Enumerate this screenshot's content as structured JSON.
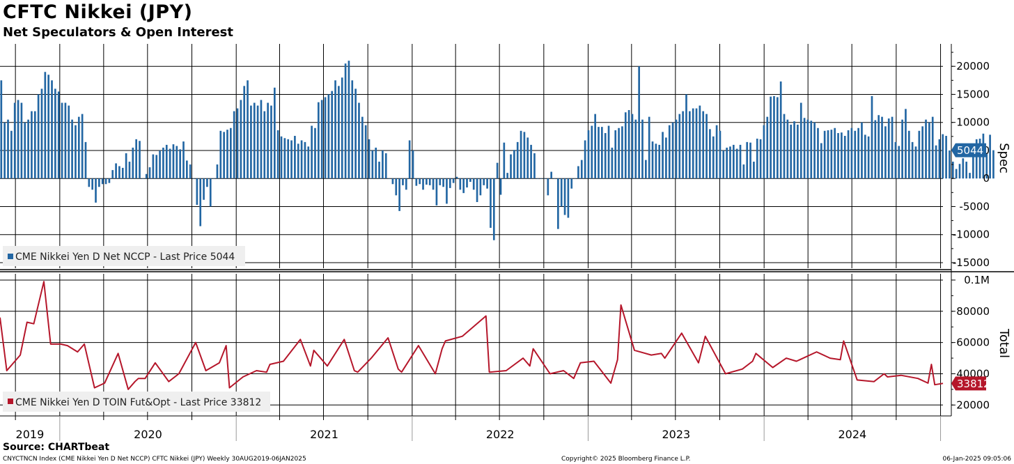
{
  "header": {
    "title": "CFTC Nikkei (JPY)",
    "subtitle": "Net Speculators & Open Interest"
  },
  "footer": {
    "source": "Source: CHARTbeat",
    "index_text": "CNYCTNCN Index (CME Nikkei Yen D Net NCCP) CFTC Nikkei (JPY)  Weekly 30AUG2019-06JAN2025",
    "copyright": "Copyright© 2025 Bloomberg Finance L.P.",
    "timestamp": "06-Jan-2025 09:05:06"
  },
  "colors": {
    "spec": "#2266a3",
    "total": "#b5162a",
    "grid": "#000000"
  },
  "chart_data": [
    {
      "type": "bar",
      "axis_title": "Spec",
      "legend_label": "CME Nikkei Yen D Net NCCP - Last Price 5044",
      "last_value": 5044,
      "last_value_label": "5044",
      "ylim": [
        -16000,
        24000
      ],
      "yticks": [
        20000,
        15000,
        10000,
        5000,
        0,
        -5000,
        -10000,
        -15000
      ],
      "ytick_labels": [
        "20000",
        "15000",
        "10000",
        "5000",
        "0",
        "-5000",
        "-10000",
        "-15000"
      ],
      "x_start": "2019-08-30",
      "x_end": "2025-01-06",
      "grid": true,
      "legend_position": "bottom-left",
      "weekly_values": [
        17500,
        10000,
        10500,
        8500,
        13500,
        14000,
        13500,
        10000,
        10500,
        12000,
        12000,
        15000,
        16000,
        19000,
        18500,
        17500,
        16000,
        15500,
        13500,
        13500,
        13000,
        10500,
        9500,
        11000,
        11500,
        6500,
        -1500,
        -2000,
        -4300,
        -1500,
        -1000,
        -1000,
        -800,
        1500,
        2700,
        2200,
        1900,
        4500,
        3000,
        5500,
        7000,
        6700,
        0,
        800,
        2000,
        4300,
        4200,
        5000,
        5500,
        6000,
        5300,
        6100,
        5800,
        5200,
        6600,
        3200,
        2500,
        0,
        -4700,
        -8500,
        -3800,
        -1500,
        -5000,
        0,
        2500,
        8500,
        8300,
        8700,
        9000,
        12000,
        12500,
        14000,
        16500,
        17500,
        13000,
        13500,
        13000,
        14000,
        12000,
        13500,
        13000,
        16200,
        8600,
        7500,
        7200,
        7000,
        6800,
        7600,
        6200,
        6800,
        6500,
        5700,
        9400,
        9000,
        13600,
        14000,
        14500,
        15000,
        15600,
        17500,
        16500,
        18000,
        20500,
        21000,
        17500,
        16000,
        13500,
        11000,
        9500,
        7000,
        5000,
        5500,
        3000,
        5000,
        4500,
        0,
        -1000,
        -3000,
        -5800,
        -1200,
        -2000,
        6800,
        5000,
        -1300,
        -1000,
        -2000,
        -1100,
        -1200,
        -2000,
        -4800,
        -1200,
        -1500,
        -4500,
        -1700,
        -800,
        300,
        -2000,
        -2600,
        -1600,
        -600,
        -2000,
        -4200,
        -3000,
        -1200,
        -1800,
        -8800,
        -11000,
        2800,
        -2900,
        6400,
        1000,
        4300,
        5100,
        6500,
        8500,
        8300,
        7300,
        6000,
        4500,
        0,
        0,
        0,
        -3000,
        1200,
        0,
        -9000,
        -5000,
        -6500,
        -7000,
        -1800,
        0,
        2200,
        3300,
        6800,
        8600,
        9400,
        11500,
        9200,
        9200,
        8100,
        9400,
        5500,
        8600,
        9000,
        9300,
        11800,
        12200,
        11500,
        10500,
        20000,
        10500,
        3300,
        11000,
        6600,
        6200,
        6000,
        8300,
        7300,
        9500,
        10000,
        10500,
        11500,
        12000,
        15000,
        12000,
        12500,
        12500,
        13000,
        12000,
        11500,
        8800,
        7500,
        9500,
        8500,
        5000,
        5500,
        5700,
        6000,
        5300,
        6000,
        2500,
        6500,
        6400,
        3000,
        7100,
        7000,
        9500,
        11000,
        14600,
        14700,
        14500,
        17300,
        11500,
        10500,
        9600,
        10200,
        9600,
        13500,
        10800,
        10500,
        10300,
        10000,
        9000,
        6300,
        8500,
        8600,
        8700,
        9000,
        8100,
        8200,
        7600,
        8600,
        9000,
        8500,
        9000,
        10000,
        7800,
        7500,
        14700,
        10400,
        11300,
        11000,
        9300,
        10700,
        11000,
        6500,
        5800,
        10500,
        12400,
        8500,
        6500,
        5700,
        8500,
        9300,
        10500,
        10000,
        11000,
        5900,
        7000,
        7900,
        7600,
        5000,
        3000,
        1700,
        2600,
        3600,
        3000,
        1000,
        5800,
        7000,
        7100,
        8000,
        4500,
        7800,
        5044
      ]
    },
    {
      "type": "line",
      "axis_title": "Total",
      "legend_label": "CME Nikkei Yen D TOIN Fut&Opt - Last Price 33812",
      "last_value": 33812,
      "last_value_label": "33812",
      "ylim": [
        13000,
        104000
      ],
      "yticks": [
        100000,
        80000,
        60000,
        40000,
        20000
      ],
      "ytick_labels": [
        "0.1M",
        "80000",
        "60000",
        "40000",
        "20000"
      ],
      "x_start": "2019-08-30",
      "x_end": "2025-01-06",
      "grid": true,
      "legend_position": "bottom-left",
      "categories": [
        "2019",
        "2020",
        "2021",
        "2022",
        "2023",
        "2024"
      ],
      "x": [
        "2019-08-30",
        "2019-09-13",
        "2019-10-11",
        "2019-10-25",
        "2019-11-08",
        "2019-11-29",
        "2019-12-13",
        "2020-01-03",
        "2020-01-17",
        "2020-02-07",
        "2020-02-21",
        "2020-03-13",
        "2020-04-03",
        "2020-05-01",
        "2020-05-22",
        "2020-06-05",
        "2020-06-12",
        "2020-06-26",
        "2020-07-17",
        "2020-08-14",
        "2020-09-04",
        "2020-09-11",
        "2020-10-09",
        "2020-10-30",
        "2020-11-27",
        "2020-12-11",
        "2020-12-18",
        "2021-01-15",
        "2021-02-12",
        "2021-03-05",
        "2021-03-12",
        "2021-04-09",
        "2021-05-14",
        "2021-06-04",
        "2021-06-11",
        "2021-07-09",
        "2021-08-13",
        "2021-09-03",
        "2021-09-10",
        "2021-10-08",
        "2021-11-12",
        "2021-12-03",
        "2021-12-10",
        "2022-01-14",
        "2022-02-18",
        "2022-03-04",
        "2022-03-11",
        "2022-04-15",
        "2022-06-03",
        "2022-06-10",
        "2022-07-15",
        "2022-08-19",
        "2022-09-02",
        "2022-09-09",
        "2022-10-14",
        "2022-11-11",
        "2022-12-02",
        "2022-12-16",
        "2023-01-13",
        "2023-02-17",
        "2023-03-03",
        "2023-03-10",
        "2023-04-07",
        "2023-05-12",
        "2023-06-02",
        "2023-06-09",
        "2023-07-14",
        "2023-08-18",
        "2023-09-01",
        "2023-09-08",
        "2023-10-13",
        "2023-11-17",
        "2023-12-08",
        "2023-12-15",
        "2024-01-19",
        "2024-02-16",
        "2024-03-08",
        "2024-03-15",
        "2024-04-19",
        "2024-05-17",
        "2024-06-07",
        "2024-06-14",
        "2024-07-12",
        "2024-08-16",
        "2024-09-06",
        "2024-09-13",
        "2024-10-11",
        "2024-11-15",
        "2024-12-06",
        "2024-12-13",
        "2024-12-20",
        "2025-01-06"
      ],
      "values": [
        76000,
        42000,
        52000,
        73000,
        72000,
        99000,
        59000,
        59000,
        58000,
        54000,
        59000,
        31000,
        34000,
        53000,
        30000,
        35000,
        37000,
        37000,
        47000,
        35000,
        40000,
        44000,
        60000,
        42000,
        47000,
        58000,
        31000,
        38000,
        42000,
        41000,
        46000,
        48000,
        62000,
        45000,
        55000,
        45000,
        62000,
        42000,
        41000,
        50000,
        63000,
        43000,
        41000,
        58000,
        40000,
        56000,
        61000,
        64000,
        77000,
        41000,
        42000,
        50000,
        45000,
        56000,
        40000,
        42000,
        37000,
        47000,
        48000,
        34000,
        49000,
        84000,
        55000,
        52000,
        53000,
        50000,
        66000,
        47000,
        64000,
        60000,
        40000,
        43000,
        48000,
        53000,
        44000,
        50000,
        48000,
        49000,
        54000,
        50000,
        49000,
        61000,
        36000,
        35000,
        40000,
        38000,
        39000,
        37000,
        34000,
        46000,
        33000,
        33812
      ]
    }
  ]
}
